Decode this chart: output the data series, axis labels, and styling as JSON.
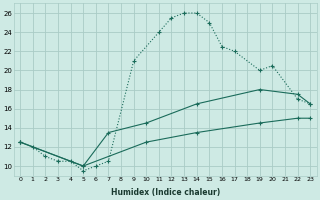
{
  "xlabel": "Humidex (Indice chaleur)",
  "bg_color": "#ceeae4",
  "grid_color": "#aaccc6",
  "line_color": "#1a6b5a",
  "line1_x": [
    0,
    1,
    2,
    3,
    4,
    5,
    6,
    7,
    9,
    11,
    12,
    13,
    14,
    15,
    16,
    17,
    19,
    20,
    22,
    23
  ],
  "line1_y": [
    12.5,
    12.0,
    11.0,
    10.5,
    10.5,
    9.5,
    10.0,
    10.5,
    21.0,
    24.0,
    25.5,
    26.0,
    26.0,
    25.0,
    22.5,
    22.0,
    20.0,
    20.5,
    17.0,
    16.5
  ],
  "line2_x": [
    0,
    5,
    7,
    10,
    14,
    19,
    22,
    23
  ],
  "line2_y": [
    12.5,
    10.0,
    13.5,
    14.5,
    16.5,
    18.0,
    17.5,
    16.5
  ],
  "line3_x": [
    0,
    5,
    10,
    14,
    19,
    22,
    23
  ],
  "line3_y": [
    12.5,
    10.0,
    12.5,
    13.5,
    14.5,
    15.0,
    15.0
  ],
  "xlim": [
    -0.5,
    23.5
  ],
  "ylim": [
    9.0,
    27.0
  ],
  "yticks": [
    10,
    12,
    14,
    16,
    18,
    20,
    22,
    24,
    26
  ],
  "xticks": [
    0,
    1,
    2,
    3,
    4,
    5,
    6,
    7,
    8,
    9,
    10,
    11,
    12,
    13,
    14,
    15,
    16,
    17,
    18,
    19,
    20,
    21,
    22,
    23
  ],
  "figsize": [
    3.2,
    2.0
  ],
  "dpi": 100
}
